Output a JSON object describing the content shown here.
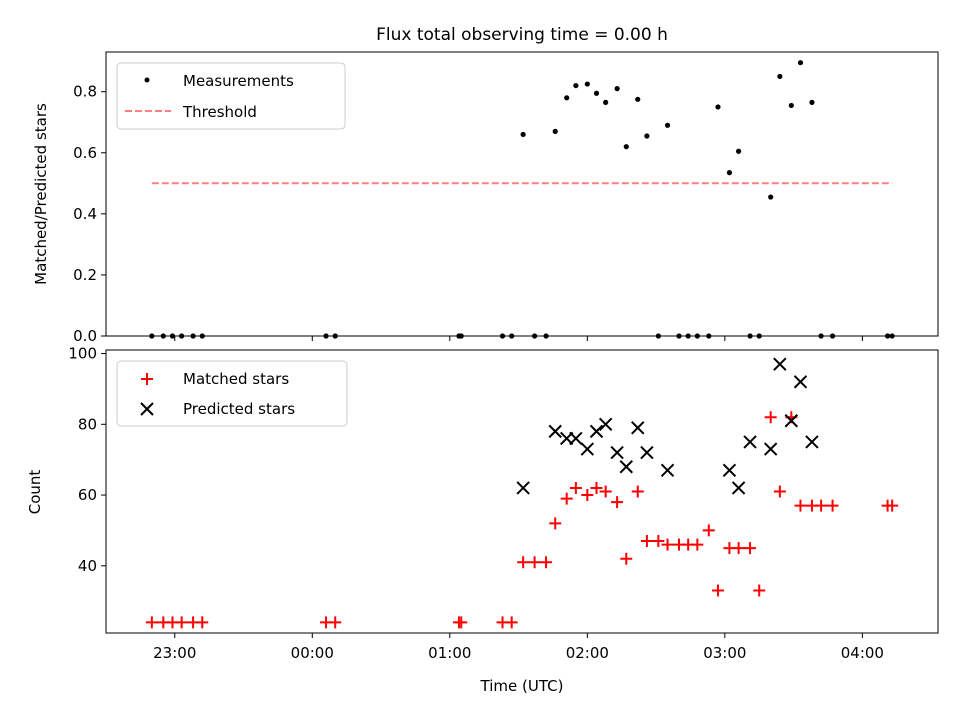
{
  "chart_data": [
    {
      "type": "scatter",
      "title": "Flux total observing time = 0.00 h",
      "xlabel": "",
      "ylabel": "Matched/Predicted stars",
      "ylim": [
        0,
        0.93
      ],
      "yticks": [
        0.0,
        0.2,
        0.4,
        0.6,
        0.8
      ],
      "ytick_labels": [
        "0.0",
        "0.2",
        "0.4",
        "0.6",
        "0.8"
      ],
      "legend": "top-left",
      "series": [
        {
          "name": "Measurements",
          "marker": "dot",
          "color": "#000000",
          "x": [
            "22:50",
            "22:55",
            "22:59",
            "23:03",
            "23:08",
            "23:12",
            "00:06",
            "00:10",
            "01:04",
            "01:05",
            "01:23",
            "01:27",
            "01:32",
            "01:37",
            "01:42",
            "01:46",
            "01:51",
            "01:55",
            "02:00",
            "02:04",
            "02:08",
            "02:13",
            "02:17",
            "02:22",
            "02:26",
            "02:31",
            "02:35",
            "02:40",
            "02:44",
            "02:48",
            "02:53",
            "02:57",
            "03:02",
            "03:06",
            "03:11",
            "03:15",
            "03:20",
            "03:24",
            "03:29",
            "03:33",
            "03:38",
            "03:42",
            "03:47",
            "04:11",
            "04:13"
          ],
          "values": [
            0,
            0,
            0,
            0,
            0,
            0,
            0,
            0,
            0,
            0,
            0,
            0,
            0.66,
            0,
            0,
            0.67,
            0.78,
            0.82,
            0.825,
            0.795,
            0.765,
            0.81,
            0.62,
            0.775,
            0.655,
            0,
            0.69,
            0,
            0,
            0,
            0,
            0.75,
            0.535,
            0.605,
            0,
            0,
            0.455,
            0.85,
            0.755,
            0.895,
            0.765,
            0,
            0,
            0,
            0
          ]
        },
        {
          "name": "Threshold",
          "line_style": "dashed",
          "color": "#ff8080",
          "x": [
            "22:50",
            "04:13"
          ],
          "values": [
            0.5,
            0.5
          ]
        }
      ]
    },
    {
      "type": "scatter",
      "title": "",
      "xlabel": "Time (UTC)",
      "ylabel": "Count",
      "ylim": [
        21,
        101
      ],
      "yticks": [
        40,
        60,
        80,
        100
      ],
      "ytick_labels": [
        "40",
        "60",
        "80",
        "100"
      ],
      "xticks": [
        "23:00",
        "00:00",
        "01:00",
        "02:00",
        "03:00",
        "04:00"
      ],
      "xlim": [
        "22:30",
        "04:33"
      ],
      "legend": "top-left",
      "series": [
        {
          "name": "Matched stars",
          "marker": "plus",
          "color": "#ff0000",
          "x": [
            "22:50",
            "22:55",
            "22:59",
            "23:03",
            "23:08",
            "23:12",
            "00:06",
            "00:10",
            "01:04",
            "01:05",
            "01:23",
            "01:27",
            "01:32",
            "01:37",
            "01:42",
            "01:46",
            "01:51",
            "01:55",
            "02:00",
            "02:04",
            "02:08",
            "02:13",
            "02:17",
            "02:22",
            "02:26",
            "02:31",
            "02:35",
            "02:40",
            "02:44",
            "02:48",
            "02:53",
            "02:57",
            "03:02",
            "03:06",
            "03:11",
            "03:15",
            "03:20",
            "03:24",
            "03:29",
            "03:33",
            "03:38",
            "03:42",
            "03:47",
            "04:11",
            "04:13"
          ],
          "values": [
            24,
            24,
            24,
            24,
            24,
            24,
            24,
            24,
            24,
            24,
            24,
            24,
            41,
            41,
            41,
            52,
            59,
            62,
            60,
            62,
            61,
            58,
            42,
            61,
            47,
            47,
            46,
            46,
            46,
            46,
            50,
            33,
            45,
            45,
            45,
            33,
            82,
            61,
            82,
            57,
            57,
            57,
            57,
            57,
            57
          ]
        },
        {
          "name": "Predicted stars",
          "marker": "x",
          "color": "#000000",
          "x": [
            "01:32",
            "01:46",
            "01:51",
            "01:55",
            "02:00",
            "02:04",
            "02:08",
            "02:13",
            "02:17",
            "02:22",
            "02:26",
            "02:35",
            "03:02",
            "03:06",
            "03:11",
            "03:20",
            "03:24",
            "03:29",
            "03:33",
            "03:38"
          ],
          "values": [
            62,
            78,
            76,
            76,
            73,
            78,
            80,
            72,
            68,
            79,
            72,
            67,
            67,
            62,
            75,
            73,
            97,
            81,
            92,
            75
          ]
        }
      ]
    }
  ]
}
